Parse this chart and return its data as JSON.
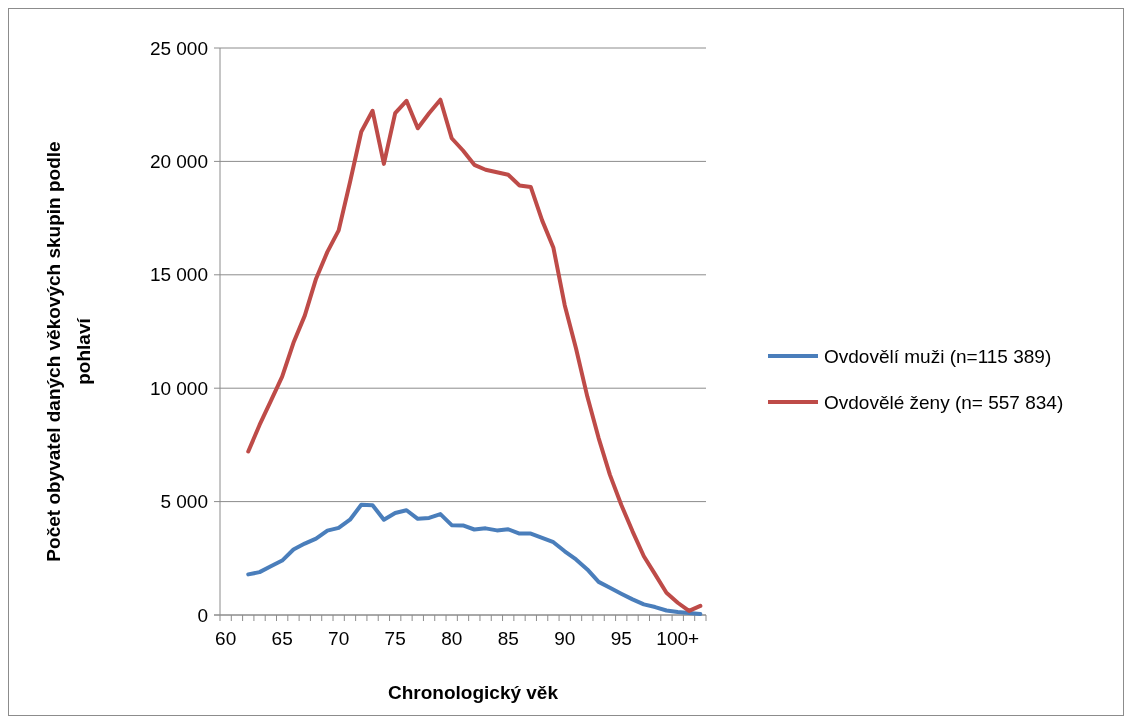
{
  "chart_data": {
    "type": "line",
    "xlabel": "Chronologický věk",
    "ylabel": "Počet obyvatel daných věkových skupin podle pohlaví",
    "categories": [
      "60",
      null,
      null,
      null,
      null,
      "65",
      null,
      null,
      null,
      null,
      "70",
      null,
      null,
      null,
      null,
      "75",
      null,
      null,
      null,
      null,
      "80",
      null,
      null,
      null,
      null,
      "85",
      null,
      null,
      null,
      null,
      "90",
      null,
      null,
      null,
      null,
      "95",
      null,
      null,
      null,
      null,
      "100+",
      null,
      null
    ],
    "series": [
      {
        "name": "Ovdovělí muži (n=115 389)",
        "color": "#4a7ebb",
        "values": [
          null,
          null,
          1790,
          1890,
          2150,
          2400,
          2890,
          3150,
          3370,
          3720,
          3840,
          4200,
          4860,
          4840,
          4200,
          4500,
          4620,
          4240,
          4280,
          4450,
          3960,
          3950,
          3770,
          3820,
          3730,
          3780,
          3590,
          3590,
          3400,
          3210,
          2810,
          2450,
          2010,
          1460,
          1200,
          940,
          690,
          470,
          350,
          200,
          130,
          90,
          40
        ]
      },
      {
        "name": "Ovdovělé ženy (n= 557 834)",
        "color": "#be4b48",
        "values": [
          null,
          null,
          7210,
          8380,
          9440,
          10510,
          12000,
          13200,
          14830,
          16010,
          16960,
          19080,
          21310,
          22230,
          19890,
          22130,
          22670,
          21460,
          22120,
          22720,
          21020,
          20480,
          19850,
          19630,
          19520,
          19410,
          18940,
          18870,
          17400,
          16190,
          13660,
          11750,
          9630,
          7800,
          6180,
          4860,
          3690,
          2590,
          1790,
          980,
          540,
          180,
          400
        ]
      }
    ],
    "ylim": [
      0,
      25000
    ],
    "yticks": [
      {
        "value": 0,
        "label": "0"
      },
      {
        "value": 5000,
        "label": "5 000"
      },
      {
        "value": 10000,
        "label": "10 000"
      },
      {
        "value": 15000,
        "label": "15 000"
      },
      {
        "value": 20000,
        "label": "20 000"
      },
      {
        "value": 25000,
        "label": "25 000"
      }
    ],
    "grid": "y",
    "legend": "right",
    "marker": "none",
    "line_style": "solid"
  }
}
